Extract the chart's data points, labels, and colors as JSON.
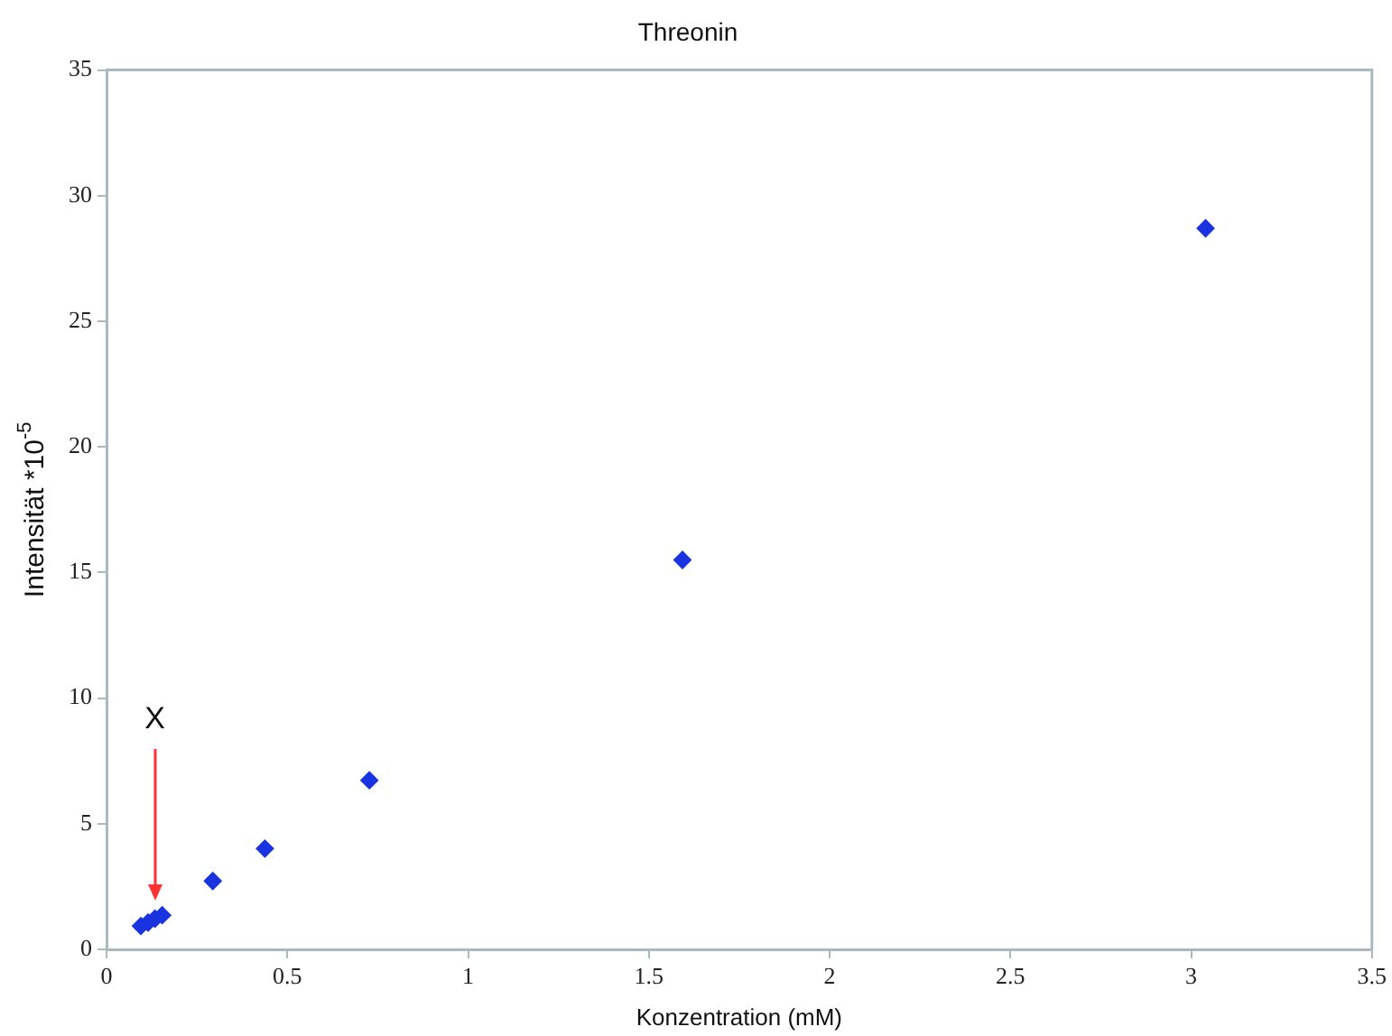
{
  "chart_data": {
    "type": "scatter",
    "title": "Threonin",
    "xlabel": "Konzentration (mM)",
    "ylabel": "Intensität *10$^{-5}$",
    "x": [
      0.095,
      0.115,
      0.134,
      0.154,
      0.294,
      0.438,
      0.727,
      1.593,
      3.04
    ],
    "series": [
      {
        "color": "#1a33e0",
        "values": [
          0.93,
          1.07,
          1.22,
          1.36,
          2.72,
          4.01,
          6.73,
          15.5,
          28.7
        ]
      }
    ],
    "xlim": [
      0,
      3.5
    ],
    "xticks": [
      0,
      0.5,
      1,
      1.5,
      2,
      2.5,
      3,
      3.5
    ],
    "ylim": [
      0,
      35
    ],
    "yticks": [
      0,
      5,
      10,
      15,
      20,
      25,
      30,
      35
    ],
    "marker": "diamond",
    "grid": false,
    "legend": false,
    "annotations": [
      "X"
    ]
  }
}
